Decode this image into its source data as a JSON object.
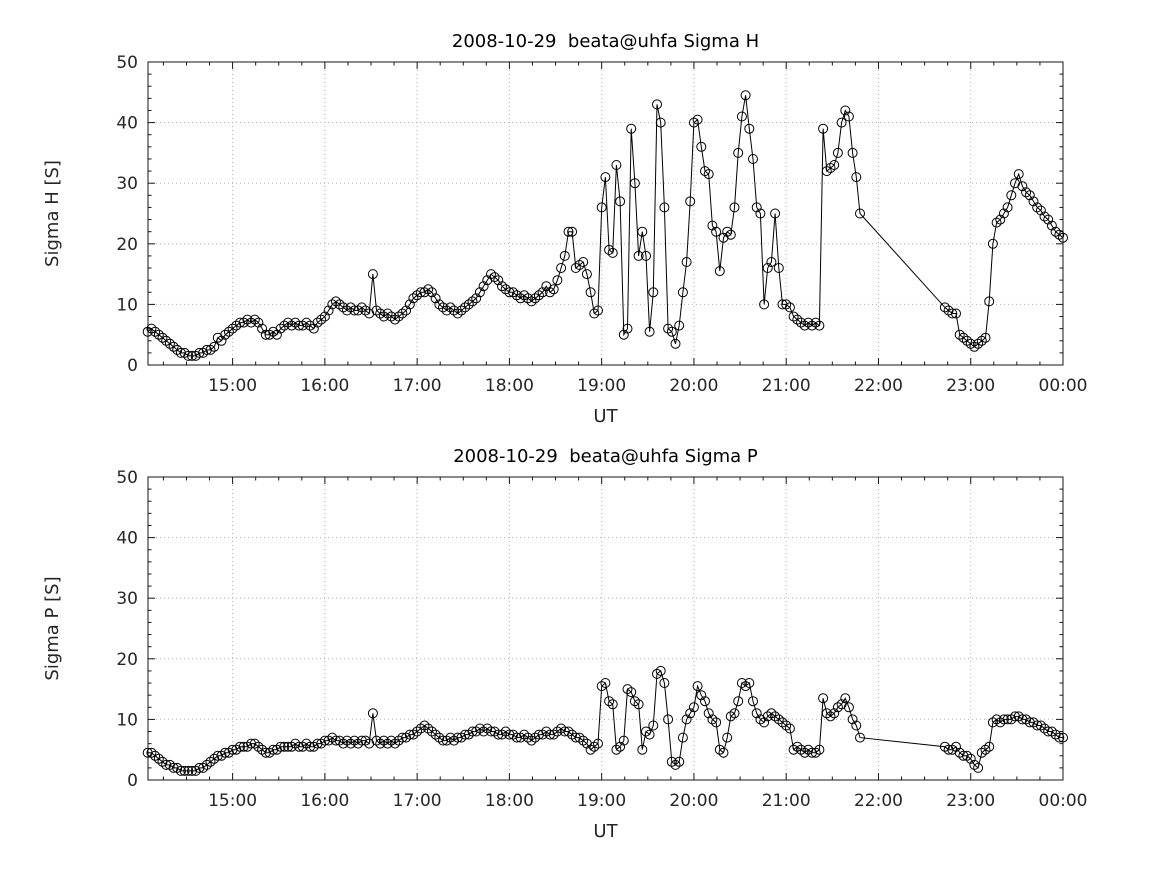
{
  "figure": {
    "background": "#ffffff",
    "axis_color": "#151515",
    "grid_color": "#b2b2b2",
    "marker_color": "#000000",
    "text_color": "#262626"
  },
  "chart_data": [
    {
      "type": "line",
      "marker": "circle",
      "title": "2008-10-29  beata@uhfa Sigma H",
      "xlabel": "UT",
      "ylabel": "Sigma H [S]",
      "xlim": [
        14.083,
        24
      ],
      "ylim": [
        0,
        50
      ],
      "grid": true,
      "legend": "none",
      "xticks": [
        15,
        16,
        17,
        18,
        19,
        20,
        21,
        22,
        23,
        24
      ],
      "xtick_labels": [
        "15:00",
        "16:00",
        "17:00",
        "18:00",
        "19:00",
        "20:00",
        "21:00",
        "22:00",
        "23:00",
        "00:00"
      ],
      "yticks": [
        0,
        10,
        20,
        30,
        40,
        50
      ],
      "x": [
        14.08,
        14.12,
        14.16,
        14.2,
        14.24,
        14.28,
        14.32,
        14.36,
        14.4,
        14.44,
        14.48,
        14.52,
        14.56,
        14.6,
        14.64,
        14.68,
        14.72,
        14.76,
        14.8,
        14.84,
        14.88,
        14.92,
        14.96,
        15,
        15.04,
        15.08,
        15.12,
        15.16,
        15.2,
        15.24,
        15.28,
        15.32,
        15.36,
        15.4,
        15.44,
        15.48,
        15.52,
        15.56,
        15.6,
        15.64,
        15.68,
        15.72,
        15.76,
        15.8,
        15.84,
        15.88,
        15.92,
        15.96,
        16,
        16.04,
        16.08,
        16.12,
        16.16,
        16.2,
        16.24,
        16.28,
        16.32,
        16.36,
        16.4,
        16.44,
        16.48,
        16.52,
        16.56,
        16.6,
        16.64,
        16.68,
        16.72,
        16.76,
        16.8,
        16.84,
        16.88,
        16.92,
        16.96,
        17,
        17.04,
        17.08,
        17.12,
        17.16,
        17.2,
        17.24,
        17.28,
        17.32,
        17.36,
        17.4,
        17.44,
        17.48,
        17.52,
        17.56,
        17.6,
        17.64,
        17.68,
        17.72,
        17.76,
        17.8,
        17.84,
        17.88,
        17.92,
        17.96,
        18,
        18.04,
        18.08,
        18.12,
        18.16,
        18.2,
        18.24,
        18.28,
        18.32,
        18.36,
        18.4,
        18.44,
        18.48,
        18.52,
        18.56,
        18.6,
        18.64,
        18.68,
        18.72,
        18.76,
        18.8,
        18.84,
        18.88,
        18.92,
        18.96,
        19,
        19.04,
        19.08,
        19.12,
        19.16,
        19.2,
        19.24,
        19.28,
        19.32,
        19.36,
        19.4,
        19.44,
        19.48,
        19.52,
        19.56,
        19.6,
        19.64,
        19.68,
        19.72,
        19.76,
        19.8,
        19.84,
        19.88,
        19.92,
        19.96,
        20,
        20.04,
        20.08,
        20.12,
        20.16,
        20.2,
        20.24,
        20.28,
        20.32,
        20.36,
        20.4,
        20.44,
        20.48,
        20.52,
        20.56,
        20.6,
        20.64,
        20.68,
        20.72,
        20.76,
        20.8,
        20.84,
        20.88,
        20.92,
        20.96,
        21,
        21.04,
        21.08,
        21.12,
        21.16,
        21.2,
        21.24,
        21.28,
        21.32,
        21.36,
        21.4,
        21.44,
        21.48,
        21.52,
        21.56,
        21.6,
        21.64,
        21.68,
        21.72,
        21.76,
        21.8,
        22.72,
        22.76,
        22.8,
        22.84,
        22.88,
        22.92,
        22.96,
        23,
        23.04,
        23.08,
        23.12,
        23.16,
        23.2,
        23.24,
        23.28,
        23.32,
        23.36,
        23.4,
        23.44,
        23.48,
        23.52,
        23.56,
        23.6,
        23.64,
        23.68,
        23.72,
        23.76,
        23.8,
        23.84,
        23.88,
        23.92,
        23.96,
        24
      ],
      "y": [
        5.5,
        6,
        5.5,
        5,
        4.5,
        4,
        3.5,
        3,
        2.5,
        2,
        2,
        1.5,
        1.5,
        1.5,
        2,
        2,
        2.5,
        2.5,
        3,
        4.5,
        4,
        5,
        5.5,
        6,
        6.5,
        7,
        7,
        7.5,
        7,
        7.5,
        7,
        6,
        5,
        5,
        5.5,
        5,
        6,
        6.5,
        7,
        6.5,
        7,
        6.5,
        6.5,
        7,
        6.5,
        6,
        7,
        7.5,
        8,
        9,
        10,
        10.5,
        10,
        9.5,
        9,
        9.5,
        9,
        9,
        9.5,
        9,
        8.5,
        15,
        9,
        8.5,
        8,
        8.5,
        8,
        7.5,
        8,
        8.5,
        9,
        10,
        11,
        11.5,
        12,
        12,
        12.5,
        12,
        11,
        10,
        9.5,
        9,
        9.5,
        9,
        8.5,
        9,
        9.5,
        10,
        10.5,
        11,
        12,
        13,
        14,
        15,
        14.5,
        14,
        13,
        12.5,
        12,
        12,
        11.5,
        11,
        11.5,
        11,
        10.5,
        11,
        11.5,
        12,
        13,
        12,
        12.5,
        14,
        16,
        18,
        22,
        22,
        16,
        16.5,
        17,
        15,
        12,
        8.5,
        9,
        26,
        31,
        19,
        18.5,
        33,
        27,
        5,
        6,
        39,
        30,
        18,
        22,
        18,
        5.5,
        12,
        43,
        40,
        26,
        6,
        5.5,
        3.5,
        6.5,
        12,
        17,
        27,
        40,
        40.5,
        36,
        32,
        31.5,
        23,
        22,
        15.5,
        21,
        22,
        21.5,
        26,
        35,
        41,
        44.5,
        39,
        34,
        26,
        25,
        10,
        16,
        17,
        25,
        16,
        10,
        10,
        9.5,
        8,
        7.5,
        7,
        6.5,
        7,
        6.5,
        7,
        6.5,
        39,
        32,
        32.5,
        33,
        35,
        40,
        42,
        41,
        35,
        31,
        25,
        9.5,
        9,
        8.5,
        8.5,
        5,
        4.5,
        4,
        3.5,
        3,
        3.5,
        4,
        4.5,
        10.5,
        20,
        23.5,
        24,
        25,
        26,
        28,
        30,
        31.5,
        29.5,
        28.5,
        28,
        27,
        26,
        25.5,
        24.5,
        24,
        23,
        22,
        21.5,
        21
      ]
    },
    {
      "type": "line",
      "marker": "circle",
      "title": "2008-10-29  beata@uhfa Sigma P",
      "xlabel": "UT",
      "ylabel": "Sigma P [S]",
      "xlim": [
        14.083,
        24
      ],
      "ylim": [
        0,
        50
      ],
      "grid": true,
      "legend": "none",
      "xticks": [
        15,
        16,
        17,
        18,
        19,
        20,
        21,
        22,
        23,
        24
      ],
      "xtick_labels": [
        "15:00",
        "16:00",
        "17:00",
        "18:00",
        "19:00",
        "20:00",
        "21:00",
        "22:00",
        "23:00",
        "00:00"
      ],
      "yticks": [
        0,
        10,
        20,
        30,
        40,
        50
      ],
      "x": [
        14.08,
        14.12,
        14.16,
        14.2,
        14.24,
        14.28,
        14.32,
        14.36,
        14.4,
        14.44,
        14.48,
        14.52,
        14.56,
        14.6,
        14.64,
        14.68,
        14.72,
        14.76,
        14.8,
        14.84,
        14.88,
        14.92,
        14.96,
        15,
        15.04,
        15.08,
        15.12,
        15.16,
        15.2,
        15.24,
        15.28,
        15.32,
        15.36,
        15.4,
        15.44,
        15.48,
        15.52,
        15.56,
        15.6,
        15.64,
        15.68,
        15.72,
        15.76,
        15.8,
        15.84,
        15.88,
        15.92,
        15.96,
        16,
        16.04,
        16.08,
        16.12,
        16.16,
        16.2,
        16.24,
        16.28,
        16.32,
        16.36,
        16.4,
        16.44,
        16.48,
        16.52,
        16.56,
        16.6,
        16.64,
        16.68,
        16.72,
        16.76,
        16.8,
        16.84,
        16.88,
        16.92,
        16.96,
        17,
        17.04,
        17.08,
        17.12,
        17.16,
        17.2,
        17.24,
        17.28,
        17.32,
        17.36,
        17.4,
        17.44,
        17.48,
        17.52,
        17.56,
        17.6,
        17.64,
        17.68,
        17.72,
        17.76,
        17.8,
        17.84,
        17.88,
        17.92,
        17.96,
        18,
        18.04,
        18.08,
        18.12,
        18.16,
        18.2,
        18.24,
        18.28,
        18.32,
        18.36,
        18.4,
        18.44,
        18.48,
        18.52,
        18.56,
        18.6,
        18.64,
        18.68,
        18.72,
        18.76,
        18.8,
        18.84,
        18.88,
        18.92,
        18.96,
        19,
        19.04,
        19.08,
        19.12,
        19.16,
        19.2,
        19.24,
        19.28,
        19.32,
        19.36,
        19.4,
        19.44,
        19.48,
        19.52,
        19.56,
        19.6,
        19.64,
        19.68,
        19.72,
        19.76,
        19.8,
        19.84,
        19.88,
        19.92,
        19.96,
        20,
        20.04,
        20.08,
        20.12,
        20.16,
        20.2,
        20.24,
        20.28,
        20.32,
        20.36,
        20.4,
        20.44,
        20.48,
        20.52,
        20.56,
        20.6,
        20.64,
        20.68,
        20.72,
        20.76,
        20.8,
        20.84,
        20.88,
        20.92,
        20.96,
        21,
        21.04,
        21.08,
        21.12,
        21.16,
        21.2,
        21.24,
        21.28,
        21.32,
        21.36,
        21.4,
        21.44,
        21.48,
        21.52,
        21.56,
        21.6,
        21.64,
        21.68,
        21.72,
        21.76,
        21.8,
        22.72,
        22.76,
        22.8,
        22.84,
        22.88,
        22.92,
        22.96,
        23,
        23.04,
        23.08,
        23.12,
        23.16,
        23.2,
        23.24,
        23.28,
        23.32,
        23.36,
        23.4,
        23.44,
        23.48,
        23.52,
        23.56,
        23.6,
        23.64,
        23.68,
        23.72,
        23.76,
        23.8,
        23.84,
        23.88,
        23.92,
        23.96,
        24
      ],
      "y": [
        4.5,
        4.5,
        4,
        3.5,
        3,
        2.5,
        2.5,
        2,
        2,
        1.5,
        1.5,
        1.5,
        1.5,
        1.5,
        2,
        2,
        2.5,
        3,
        3.5,
        4,
        4,
        4.5,
        4.5,
        5,
        5,
        5.5,
        5.5,
        5.5,
        6,
        6,
        5.5,
        5,
        4.5,
        4.5,
        5,
        5,
        5.5,
        5.5,
        5.5,
        5.5,
        6,
        5.5,
        5.5,
        6,
        5.5,
        5.5,
        6,
        6,
        6.5,
        6.5,
        7,
        6.5,
        6.5,
        6,
        6.5,
        6,
        6.5,
        6,
        6.5,
        6.5,
        6,
        11,
        6.5,
        6,
        6.5,
        6,
        6.5,
        6,
        6.5,
        7,
        7,
        7.5,
        7.5,
        8,
        8.5,
        9,
        8.5,
        8,
        7.5,
        7,
        6.5,
        6.5,
        7,
        6.5,
        7,
        7,
        7.5,
        7.5,
        8,
        8,
        8.5,
        8,
        8.5,
        8,
        8,
        7.5,
        7.5,
        8,
        7.5,
        7.5,
        7,
        7,
        7.5,
        7,
        6.5,
        7,
        7.5,
        7.5,
        8,
        7.5,
        7.5,
        8,
        8.5,
        8,
        8,
        7.5,
        7,
        7,
        6.5,
        6,
        5,
        5.5,
        6,
        15.5,
        16,
        13,
        12.5,
        5,
        5.5,
        6.5,
        15,
        14.5,
        13,
        12.5,
        5,
        8,
        7.5,
        9,
        17.5,
        18,
        16,
        10,
        3,
        2.5,
        3,
        7,
        10,
        11,
        12,
        15.5,
        14,
        13,
        11,
        10,
        9.5,
        5,
        4.5,
        7,
        10.5,
        11,
        13,
        16,
        15.5,
        16,
        13,
        11,
        10,
        9.5,
        10.5,
        11,
        10.5,
        10,
        9.5,
        9,
        8.5,
        5,
        5.5,
        5,
        4.5,
        5,
        4.5,
        4.5,
        5,
        13.5,
        11,
        10.5,
        11,
        12,
        12.5,
        13.5,
        12,
        10,
        9,
        7,
        5.5,
        5,
        5,
        5.5,
        4.5,
        4,
        4,
        3.5,
        2.5,
        2,
        4.5,
        5,
        5.5,
        9.5,
        10,
        9.5,
        10,
        10,
        10,
        10.5,
        10.5,
        10,
        10,
        9.5,
        9.5,
        9,
        9,
        8.5,
        8,
        8,
        7.5,
        7,
        7
      ]
    }
  ]
}
